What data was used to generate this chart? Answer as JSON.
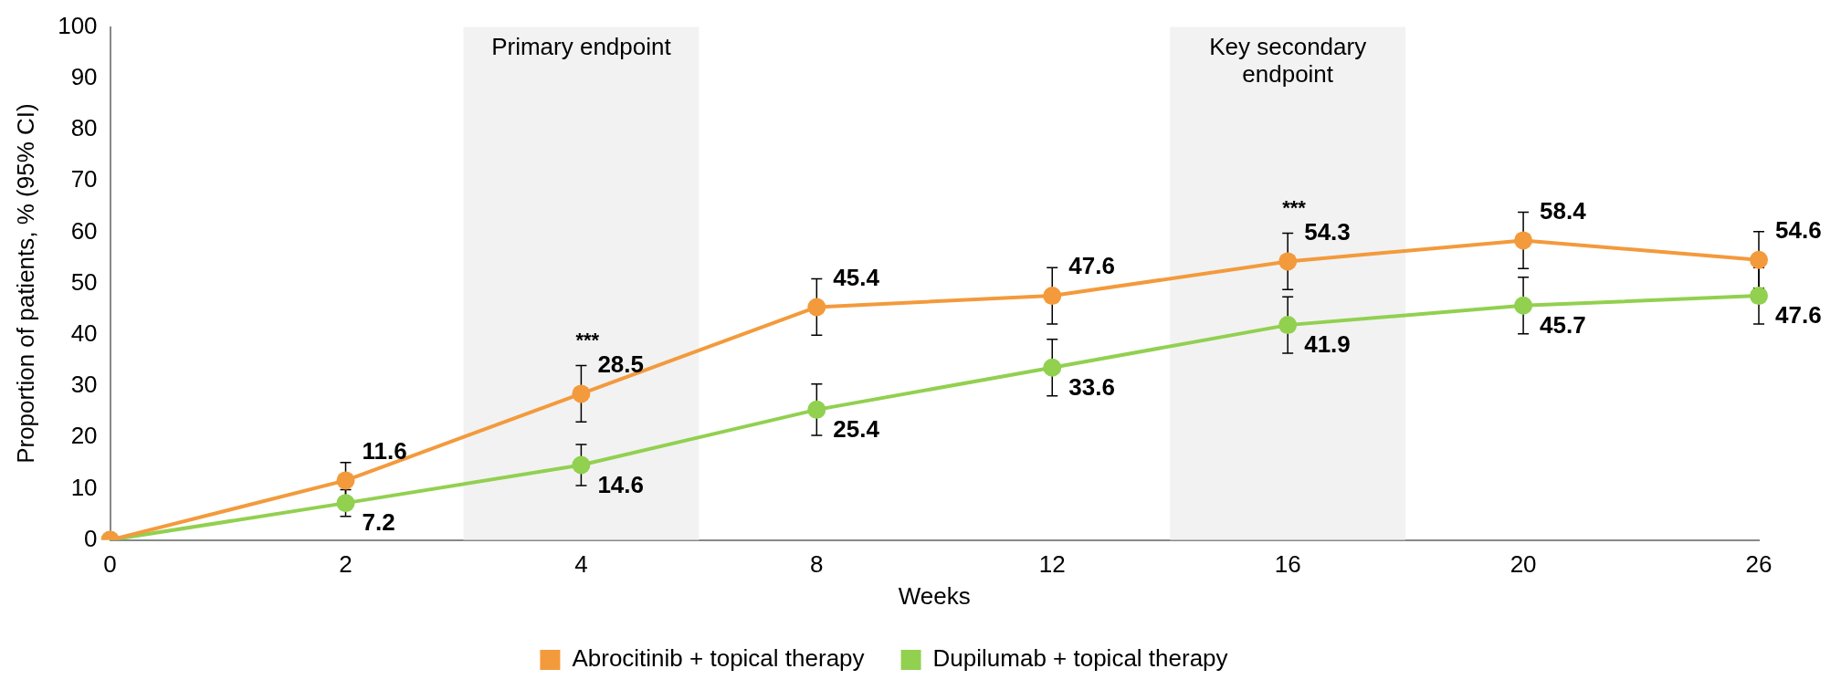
{
  "chart_data": {
    "type": "line",
    "xlabel": "Weeks",
    "ylabel": "Proportion of patients, % (95% CI)",
    "categories": [
      "0",
      "2",
      "4",
      "8",
      "12",
      "16",
      "20",
      "26"
    ],
    "series": [
      {
        "name": "Abrocitinib + topical therapy",
        "color": "#f39a3c",
        "values": [
          0,
          11.6,
          28.5,
          45.4,
          47.6,
          54.3,
          58.4,
          54.6
        ],
        "errors": [
          null,
          3.5,
          5.5,
          5.5,
          5.5,
          5.5,
          5.5,
          5.5
        ],
        "value_labels": [
          null,
          "11.6",
          "28.5",
          "45.4",
          "47.6",
          "54.3",
          "58.4",
          "54.6"
        ]
      },
      {
        "name": "Dupilumab + topical therapy",
        "color": "#92d050",
        "values": [
          0,
          7.2,
          14.6,
          25.4,
          33.6,
          41.9,
          45.7,
          47.6
        ],
        "errors": [
          null,
          2.6,
          4,
          5,
          5.5,
          5.5,
          5.5,
          5.5
        ],
        "value_labels": [
          null,
          "7.2",
          "14.6",
          "25.4",
          "33.6",
          "41.9",
          "45.7",
          "47.6"
        ]
      }
    ],
    "ylim": [
      0,
      100
    ],
    "yticks": [
      0,
      10,
      20,
      30,
      40,
      50,
      60,
      70,
      80,
      90,
      100
    ],
    "bands": [
      {
        "axis": "x",
        "from": "4",
        "to": "4",
        "label": "Primary endpoint",
        "color": "#f2f2f2"
      },
      {
        "axis": "x",
        "from": "16",
        "to": "16",
        "label": "Key secondary endpoint",
        "color": "#f2f2f2"
      }
    ],
    "annotations": [
      {
        "text": "***",
        "x": "4",
        "y": 28.5
      },
      {
        "text": "***",
        "x": "16",
        "y": 54.3
      }
    ],
    "marker": "circle",
    "line_style": "solid",
    "grid": false,
    "legend": "bottom"
  }
}
